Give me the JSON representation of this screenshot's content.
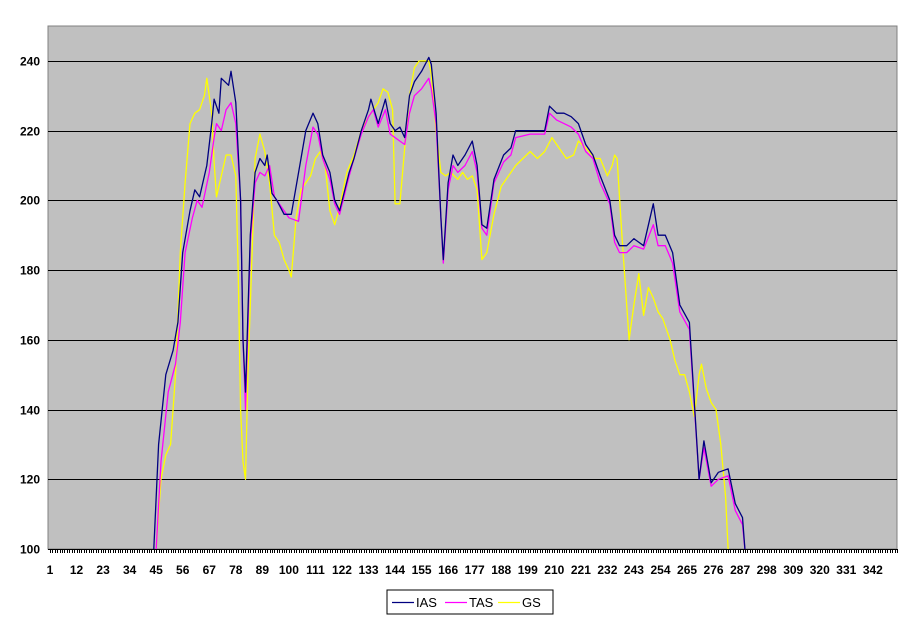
{
  "chart_data": {
    "type": "line",
    "title": "",
    "xlabel": "",
    "ylabel": "",
    "ylim": [
      100,
      250
    ],
    "yticks": [
      100,
      120,
      140,
      160,
      180,
      200,
      220,
      240
    ],
    "xlim": [
      1,
      352
    ],
    "xticks": [
      1,
      12,
      23,
      34,
      45,
      56,
      67,
      78,
      89,
      100,
      111,
      122,
      133,
      144,
      155,
      166,
      177,
      188,
      199,
      210,
      221,
      232,
      243,
      254,
      265,
      276,
      287,
      298,
      309,
      320,
      331,
      342
    ],
    "grid": "horizontal",
    "legend": "bottom",
    "plot_background": "#C0C0C0",
    "series": [
      {
        "name": "IAS",
        "color": "#000080",
        "x": [
          44,
          46,
          49,
          52,
          54,
          56,
          59,
          61,
          63,
          66,
          68,
          69,
          71,
          72,
          75,
          76,
          78,
          80,
          81,
          82,
          84,
          86,
          88,
          90,
          91,
          93,
          95,
          98,
          101,
          105,
          107,
          110,
          112,
          114,
          117,
          119,
          121,
          125,
          127,
          130,
          133,
          134,
          137,
          140,
          142,
          144,
          146,
          148,
          150,
          152,
          155,
          158,
          159,
          161,
          163,
          164,
          166,
          168,
          170,
          173,
          176,
          178,
          180,
          182,
          185,
          189,
          192,
          194,
          200,
          206,
          208,
          211,
          214,
          217,
          220,
          223,
          226,
          229,
          233,
          235,
          237,
          240,
          243,
          247,
          251,
          253,
          256,
          259,
          262,
          266,
          270,
          272,
          275,
          278,
          282,
          285,
          288,
          289
        ],
        "y": [
          100,
          130,
          150,
          157,
          165,
          185,
          197,
          203,
          201,
          210,
          222,
          229,
          225,
          235,
          233,
          237,
          228,
          200,
          160,
          145,
          190,
          208,
          212,
          210,
          213,
          202,
          200,
          196,
          196,
          212,
          220,
          225,
          222,
          213,
          208,
          200,
          197,
          208,
          212,
          220,
          226,
          229,
          222,
          229,
          222,
          220,
          221,
          218,
          230,
          234,
          237,
          241,
          239,
          225,
          195,
          183,
          205,
          213,
          210,
          213,
          217,
          210,
          193,
          192,
          206,
          213,
          215,
          220,
          220,
          220,
          227,
          225,
          225,
          224,
          222,
          216,
          213,
          207,
          200,
          190,
          187,
          187,
          189,
          187,
          199,
          190,
          190,
          185,
          170,
          165,
          120,
          131,
          119,
          122,
          123,
          113,
          109,
          100
        ]
      },
      {
        "name": "TAS",
        "color": "#FF00FF",
        "x": [
          45,
          47,
          50,
          53,
          55,
          57,
          60,
          62,
          64,
          67,
          69,
          70,
          72,
          74,
          76,
          78,
          80,
          81,
          82,
          84,
          86,
          88,
          90,
          92,
          94,
          97,
          100,
          104,
          107,
          110,
          112,
          114,
          117,
          119,
          121,
          125,
          127,
          130,
          133,
          135,
          137,
          140,
          142,
          144,
          146,
          148,
          150,
          152,
          155,
          158,
          159,
          161,
          163,
          164,
          166,
          168,
          170,
          173,
          176,
          178,
          180,
          182,
          185,
          189,
          192,
          194,
          200,
          206,
          208,
          211,
          214,
          217,
          220,
          223,
          226,
          229,
          233,
          235,
          237,
          240,
          243,
          247,
          251,
          253,
          256,
          259,
          262,
          266,
          270,
          272,
          275,
          278,
          282,
          285,
          288,
          289
        ],
        "y": [
          100,
          125,
          145,
          153,
          165,
          185,
          195,
          200,
          198,
          208,
          218,
          222,
          220,
          226,
          228,
          222,
          200,
          160,
          140,
          188,
          205,
          208,
          207,
          210,
          201,
          198,
          195,
          194,
          210,
          221,
          219,
          212,
          206,
          199,
          196,
          207,
          212,
          219,
          224,
          226,
          221,
          226,
          219,
          218,
          217,
          216,
          225,
          230,
          232,
          235,
          232,
          222,
          195,
          182,
          203,
          210,
          208,
          210,
          214,
          208,
          192,
          190,
          205,
          211,
          213,
          218,
          219,
          219,
          225,
          223,
          222,
          221,
          219,
          214,
          212,
          205,
          199,
          188,
          185,
          185,
          187,
          186,
          193,
          187,
          187,
          182,
          168,
          163,
          120,
          129,
          118,
          120,
          121,
          111,
          107,
          100
        ]
      },
      {
        "name": "GS",
        "color": "#FFFF00",
        "x": [
          45,
          47,
          49,
          51,
          53,
          55,
          57,
          59,
          61,
          63,
          65,
          66,
          68,
          69,
          70,
          72,
          74,
          76,
          78,
          79,
          80,
          81,
          82,
          83,
          85,
          86,
          88,
          90,
          92,
          94,
          96,
          98,
          100,
          101,
          103,
          105,
          107,
          109,
          111,
          113,
          115,
          117,
          119,
          121,
          124,
          127,
          130,
          133,
          135,
          137,
          139,
          141,
          143,
          144,
          146,
          148,
          150,
          152,
          154,
          156,
          158,
          159,
          161,
          163,
          165,
          167,
          170,
          172,
          174,
          176,
          178,
          180,
          182,
          185,
          188,
          191,
          194,
          197,
          200,
          203,
          206,
          209,
          212,
          215,
          218,
          220,
          223,
          227,
          229,
          232,
          234,
          235,
          236,
          238,
          240,
          241,
          243,
          245,
          247,
          249,
          251,
          253,
          255,
          258,
          260,
          262,
          264,
          266,
          268,
          270,
          271,
          273,
          275,
          277,
          279,
          281,
          282
        ],
        "y": [
          100,
          120,
          127,
          130,
          150,
          185,
          205,
          222,
          225,
          226,
          230,
          235,
          225,
          211,
          201,
          207,
          213,
          213,
          207,
          180,
          140,
          125,
          120,
          150,
          190,
          212,
          219,
          214,
          205,
          190,
          188,
          183,
          180,
          178,
          195,
          203,
          205,
          207,
          212,
          214,
          210,
          197,
          193,
          198,
          208,
          213,
          220,
          224,
          226,
          228,
          232,
          231,
          226,
          199,
          199,
          215,
          230,
          238,
          240,
          240,
          240,
          236,
          220,
          208,
          207,
          208,
          206,
          208,
          206,
          207,
          203,
          183,
          185,
          196,
          204,
          207,
          210,
          212,
          214,
          212,
          214,
          218,
          215,
          212,
          213,
          217,
          215,
          212,
          212,
          207,
          210,
          213,
          212,
          190,
          170,
          160,
          170,
          179,
          167,
          175,
          172,
          168,
          166,
          160,
          154,
          150,
          150,
          145,
          138,
          150,
          153,
          146,
          142,
          140,
          130,
          115,
          100
        ]
      }
    ]
  }
}
